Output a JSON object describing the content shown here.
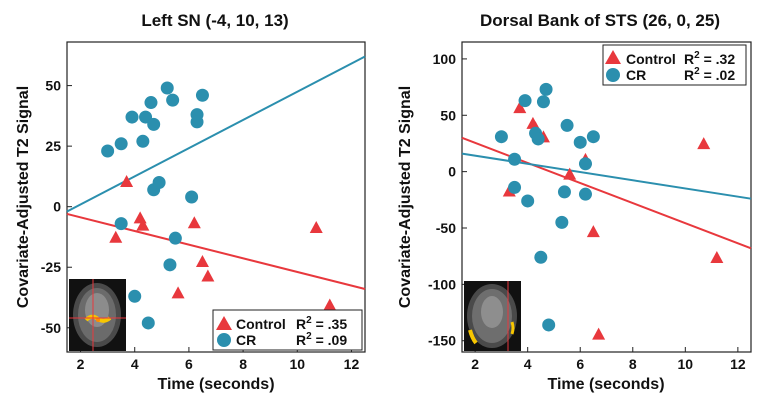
{
  "chart_data": [
    {
      "type": "scatter",
      "title": "Left SN (-4, 10, 13)",
      "xlabel": "Time (seconds)",
      "ylabel": "Covariate-Adjusted T2 Signal",
      "xlim": [
        1.5,
        12.5
      ],
      "ylim": [
        -60,
        68
      ],
      "xticks": [
        2,
        4,
        6,
        8,
        10,
        12
      ],
      "yticks": [
        -50,
        -25,
        0,
        25,
        50
      ],
      "grid": false,
      "legend": "bottom-right",
      "series": [
        {
          "name": "Control",
          "marker": "triangle",
          "color": "#e8383d",
          "r2_label": "R",
          "r2_sup": "2",
          "r2_value": " = .35",
          "points": [
            [
              3.3,
              -13
            ],
            [
              3.7,
              10
            ],
            [
              4.2,
              -5
            ],
            [
              4.3,
              -8
            ],
            [
              5.6,
              -36
            ],
            [
              6.2,
              -7
            ],
            [
              6.5,
              -23
            ],
            [
              6.7,
              -29
            ],
            [
              10.7,
              -9
            ],
            [
              11.2,
              -41
            ]
          ],
          "fit": [
            [
              1.5,
              -3
            ],
            [
              12.5,
              -34
            ]
          ]
        },
        {
          "name": "CR",
          "marker": "circle",
          "color": "#2b8fae",
          "r2_label": "R",
          "r2_sup": "2",
          "r2_value": " = .09",
          "points": [
            [
              3.0,
              23
            ],
            [
              3.5,
              26
            ],
            [
              3.5,
              -7
            ],
            [
              3.9,
              37
            ],
            [
              4.0,
              -37
            ],
            [
              4.3,
              27
            ],
            [
              4.4,
              37
            ],
            [
              4.6,
              43
            ],
            [
              4.7,
              34
            ],
            [
              4.5,
              -48
            ],
            [
              4.7,
              7
            ],
            [
              4.9,
              10
            ],
            [
              5.2,
              49
            ],
            [
              5.3,
              -24
            ],
            [
              5.4,
              44
            ],
            [
              5.5,
              -13
            ],
            [
              6.1,
              4
            ],
            [
              6.3,
              38
            ],
            [
              6.3,
              35
            ],
            [
              6.5,
              46
            ]
          ],
          "fit": [
            [
              1.5,
              -2
            ],
            [
              12.5,
              62
            ]
          ]
        }
      ]
    },
    {
      "type": "scatter",
      "title": "Dorsal Bank of STS (26, 0, 25)",
      "xlabel": "Time (seconds)",
      "ylabel": "Covariate-Adjusted T2 Signal",
      "xlim": [
        1.5,
        12.5
      ],
      "ylim": [
        -160,
        115
      ],
      "xticks": [
        2,
        4,
        6,
        8,
        10,
        12
      ],
      "yticks": [
        -150,
        -100,
        -50,
        0,
        50,
        100
      ],
      "grid": false,
      "legend": "top-right",
      "series": [
        {
          "name": "Control",
          "marker": "triangle",
          "color": "#e8383d",
          "r2_label": "R",
          "r2_sup": "2",
          "r2_value": " = .32",
          "points": [
            [
              3.3,
              -18
            ],
            [
              3.7,
              56
            ],
            [
              4.2,
              42
            ],
            [
              4.3,
              38
            ],
            [
              4.6,
              30
            ],
            [
              5.6,
              -3
            ],
            [
              6.2,
              10
            ],
            [
              6.5,
              -54
            ],
            [
              6.7,
              -145
            ],
            [
              10.7,
              24
            ],
            [
              11.2,
              -77
            ]
          ],
          "fit": [
            [
              1.5,
              30
            ],
            [
              12.5,
              -68
            ]
          ]
        },
        {
          "name": "CR",
          "marker": "circle",
          "color": "#2b8fae",
          "r2_label": "R",
          "r2_sup": "2",
          "r2_value": " = .02",
          "points": [
            [
              3.0,
              31
            ],
            [
              3.5,
              11
            ],
            [
              3.5,
              -14
            ],
            [
              3.9,
              63
            ],
            [
              4.0,
              -26
            ],
            [
              4.3,
              34
            ],
            [
              4.4,
              29
            ],
            [
              4.6,
              62
            ],
            [
              4.7,
              73
            ],
            [
              4.5,
              -76
            ],
            [
              4.8,
              -136
            ],
            [
              5.3,
              -45
            ],
            [
              5.4,
              -18
            ],
            [
              5.5,
              41
            ],
            [
              6.0,
              26
            ],
            [
              6.2,
              7
            ],
            [
              6.2,
              -20
            ],
            [
              6.5,
              31
            ]
          ],
          "fit": [
            [
              1.5,
              16
            ],
            [
              12.5,
              -24
            ]
          ]
        }
      ]
    }
  ]
}
